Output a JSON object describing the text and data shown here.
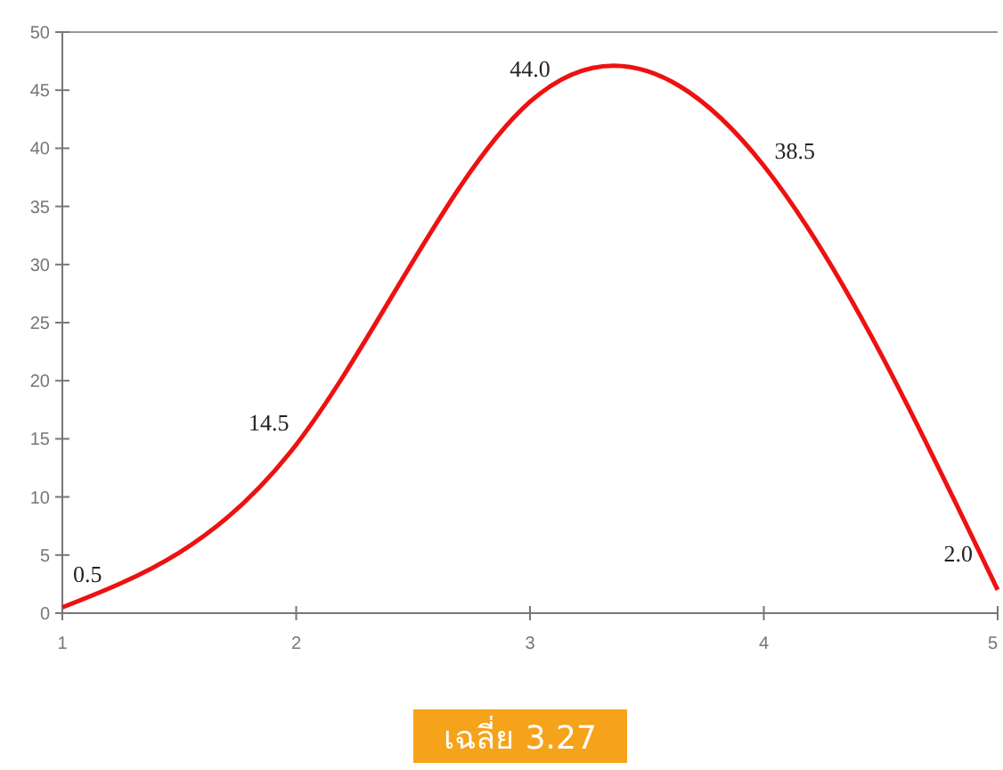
{
  "chart_data": {
    "type": "line",
    "x": [
      1,
      2,
      3,
      4,
      5
    ],
    "series": [
      {
        "color": "#ee1111",
        "values": [
          0.5,
          14.5,
          44.0,
          38.5,
          2.0
        ]
      }
    ],
    "xlim": [
      1,
      5
    ],
    "xticks": [
      1,
      2,
      3,
      4,
      5
    ],
    "ylim": [
      0,
      50
    ],
    "yticks": [
      0,
      5,
      10,
      15,
      20,
      25,
      30,
      35,
      40,
      45,
      50
    ],
    "value_labels": [
      "0.5",
      "14.5",
      "44.0",
      "38.5",
      "2.0"
    ],
    "grid": false,
    "marker": "none",
    "line_style": "solid",
    "annotations": [
      "เฉลี่ย 3.27"
    ]
  }
}
